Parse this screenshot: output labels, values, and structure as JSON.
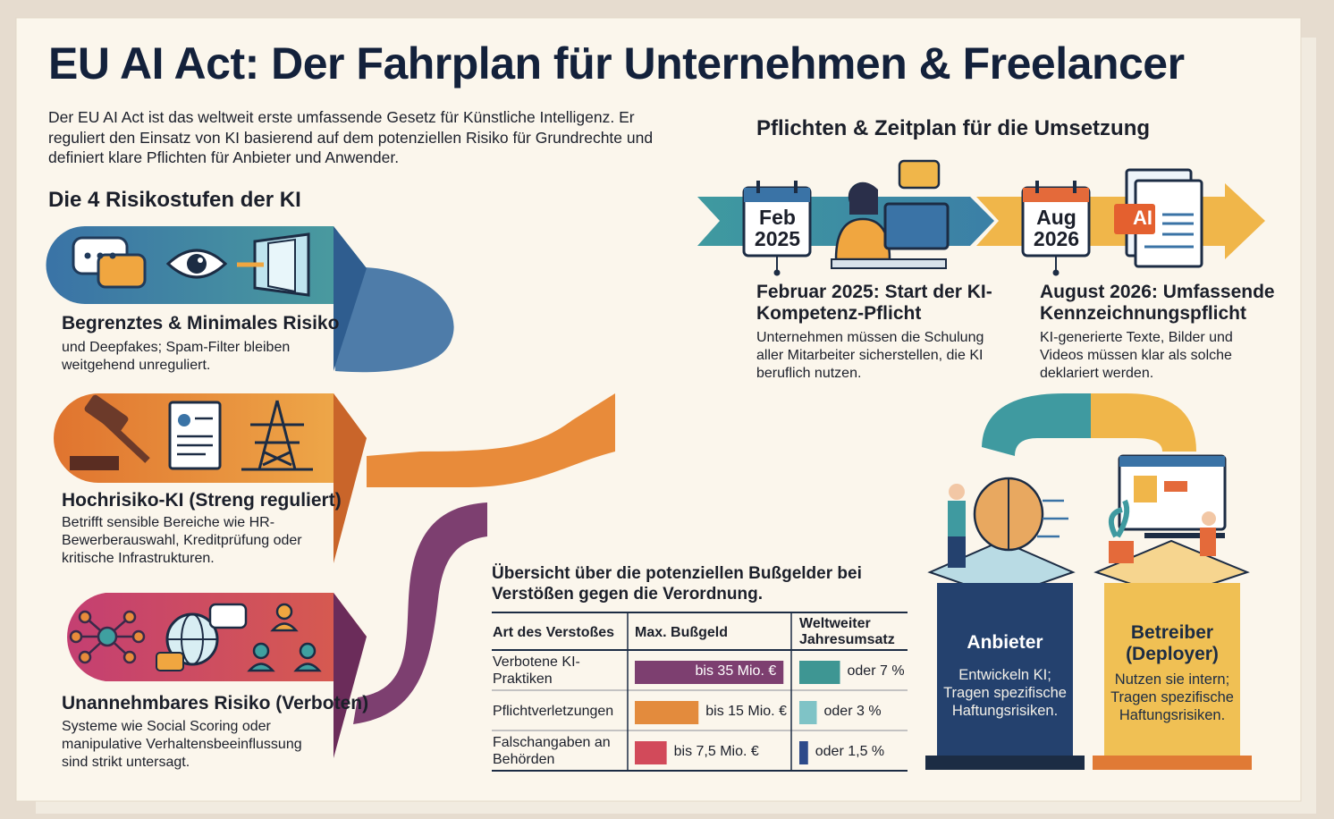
{
  "title": "EU AI Act: Der Fahrplan für Unternehmen & Freelancer",
  "intro": "Der EU AI Act ist das weltweit erste umfassende Gesetz für Künstliche Intelligenz. Er reguliert den Einsatz von KI basierend auf dem potenziellen Risiko für Grundrechte und definiert klare Pflichten für Anbieter und Anwender.",
  "risk_section": {
    "heading": "Die 4 Risikostufen der KI",
    "levels": [
      {
        "title": "Begrenztes & Minimales Risiko",
        "text": "und Deepfakes; Spam-Filter bleiben weitgehend unreguliert."
      },
      {
        "title": "Hochrisiko-KI (Streng reguliert)",
        "text": "Betrifft sensible Bereiche wie HR-Bewerberauswahl, Kreditprüfung oder kritische Infrastrukturen."
      },
      {
        "title": "Unannehmbares Risiko (Verboten)",
        "text": "Systeme wie Social Scoring oder manipulative Verhaltensbeeinflussung sind strikt untersagt."
      }
    ]
  },
  "timeline": {
    "heading": "Pflichten & Zeitplan für die Umsetzung",
    "document_icon_label": "AI",
    "milestones": [
      {
        "month": "Feb",
        "year": "2025",
        "title": "Februar 2025: Start der KI-Kompetenz-Pflicht",
        "text": "Unternehmen müssen die Schulung aller Mitarbeiter sicherstellen, die KI beruflich nutzen."
      },
      {
        "month": "Aug",
        "year": "2026",
        "title": "August 2026: Umfassende Kennzeichnungspflicht",
        "text": "KI-generierte Texte, Bilder und Videos müssen klar als solche deklariert werden."
      }
    ]
  },
  "fines": {
    "heading": "Übersicht über die potenziellen Bußgelder bei Verstößen gegen die Verordnung.",
    "columns": [
      "Art des Verstoßes",
      "Max. Bußgeld",
      "Weltweiter Jahresumsatz"
    ],
    "rows": [
      {
        "violation": "Verbotene KI-Praktiken",
        "fine": {
          "value": 35,
          "label": "bis 35 Mio. €"
        },
        "turnover": {
          "value": 7,
          "label": "oder 7 %"
        },
        "fine_color": "#7d3f70",
        "turnover_color": "#3e9693"
      },
      {
        "violation": "Pflichtverletzungen",
        "fine": {
          "value": 15,
          "label": "bis 15 Mio. €"
        },
        "turnover": {
          "value": 3,
          "label": "oder 3 %"
        },
        "fine_color": "#e38b3d",
        "turnover_color": "#7fc3c6"
      },
      {
        "violation": "Falschangaben an Behörden",
        "fine": {
          "value": 7.5,
          "label": "bis 7,5 Mio. €"
        },
        "turnover": {
          "value": 1.5,
          "label": "oder 1,5 %"
        },
        "fine_color": "#d24a5a",
        "turnover_color": "#2d4a8a"
      }
    ]
  },
  "roles": [
    {
      "title": "Anbieter",
      "text": "Entwickeln KI; Tragen spezifische Haftungsrisiken."
    },
    {
      "title": "Betreiber (Deployer)",
      "text": "Nutzen sie intern; Tragen spezifische Haftungsrisiken."
    }
  ]
}
